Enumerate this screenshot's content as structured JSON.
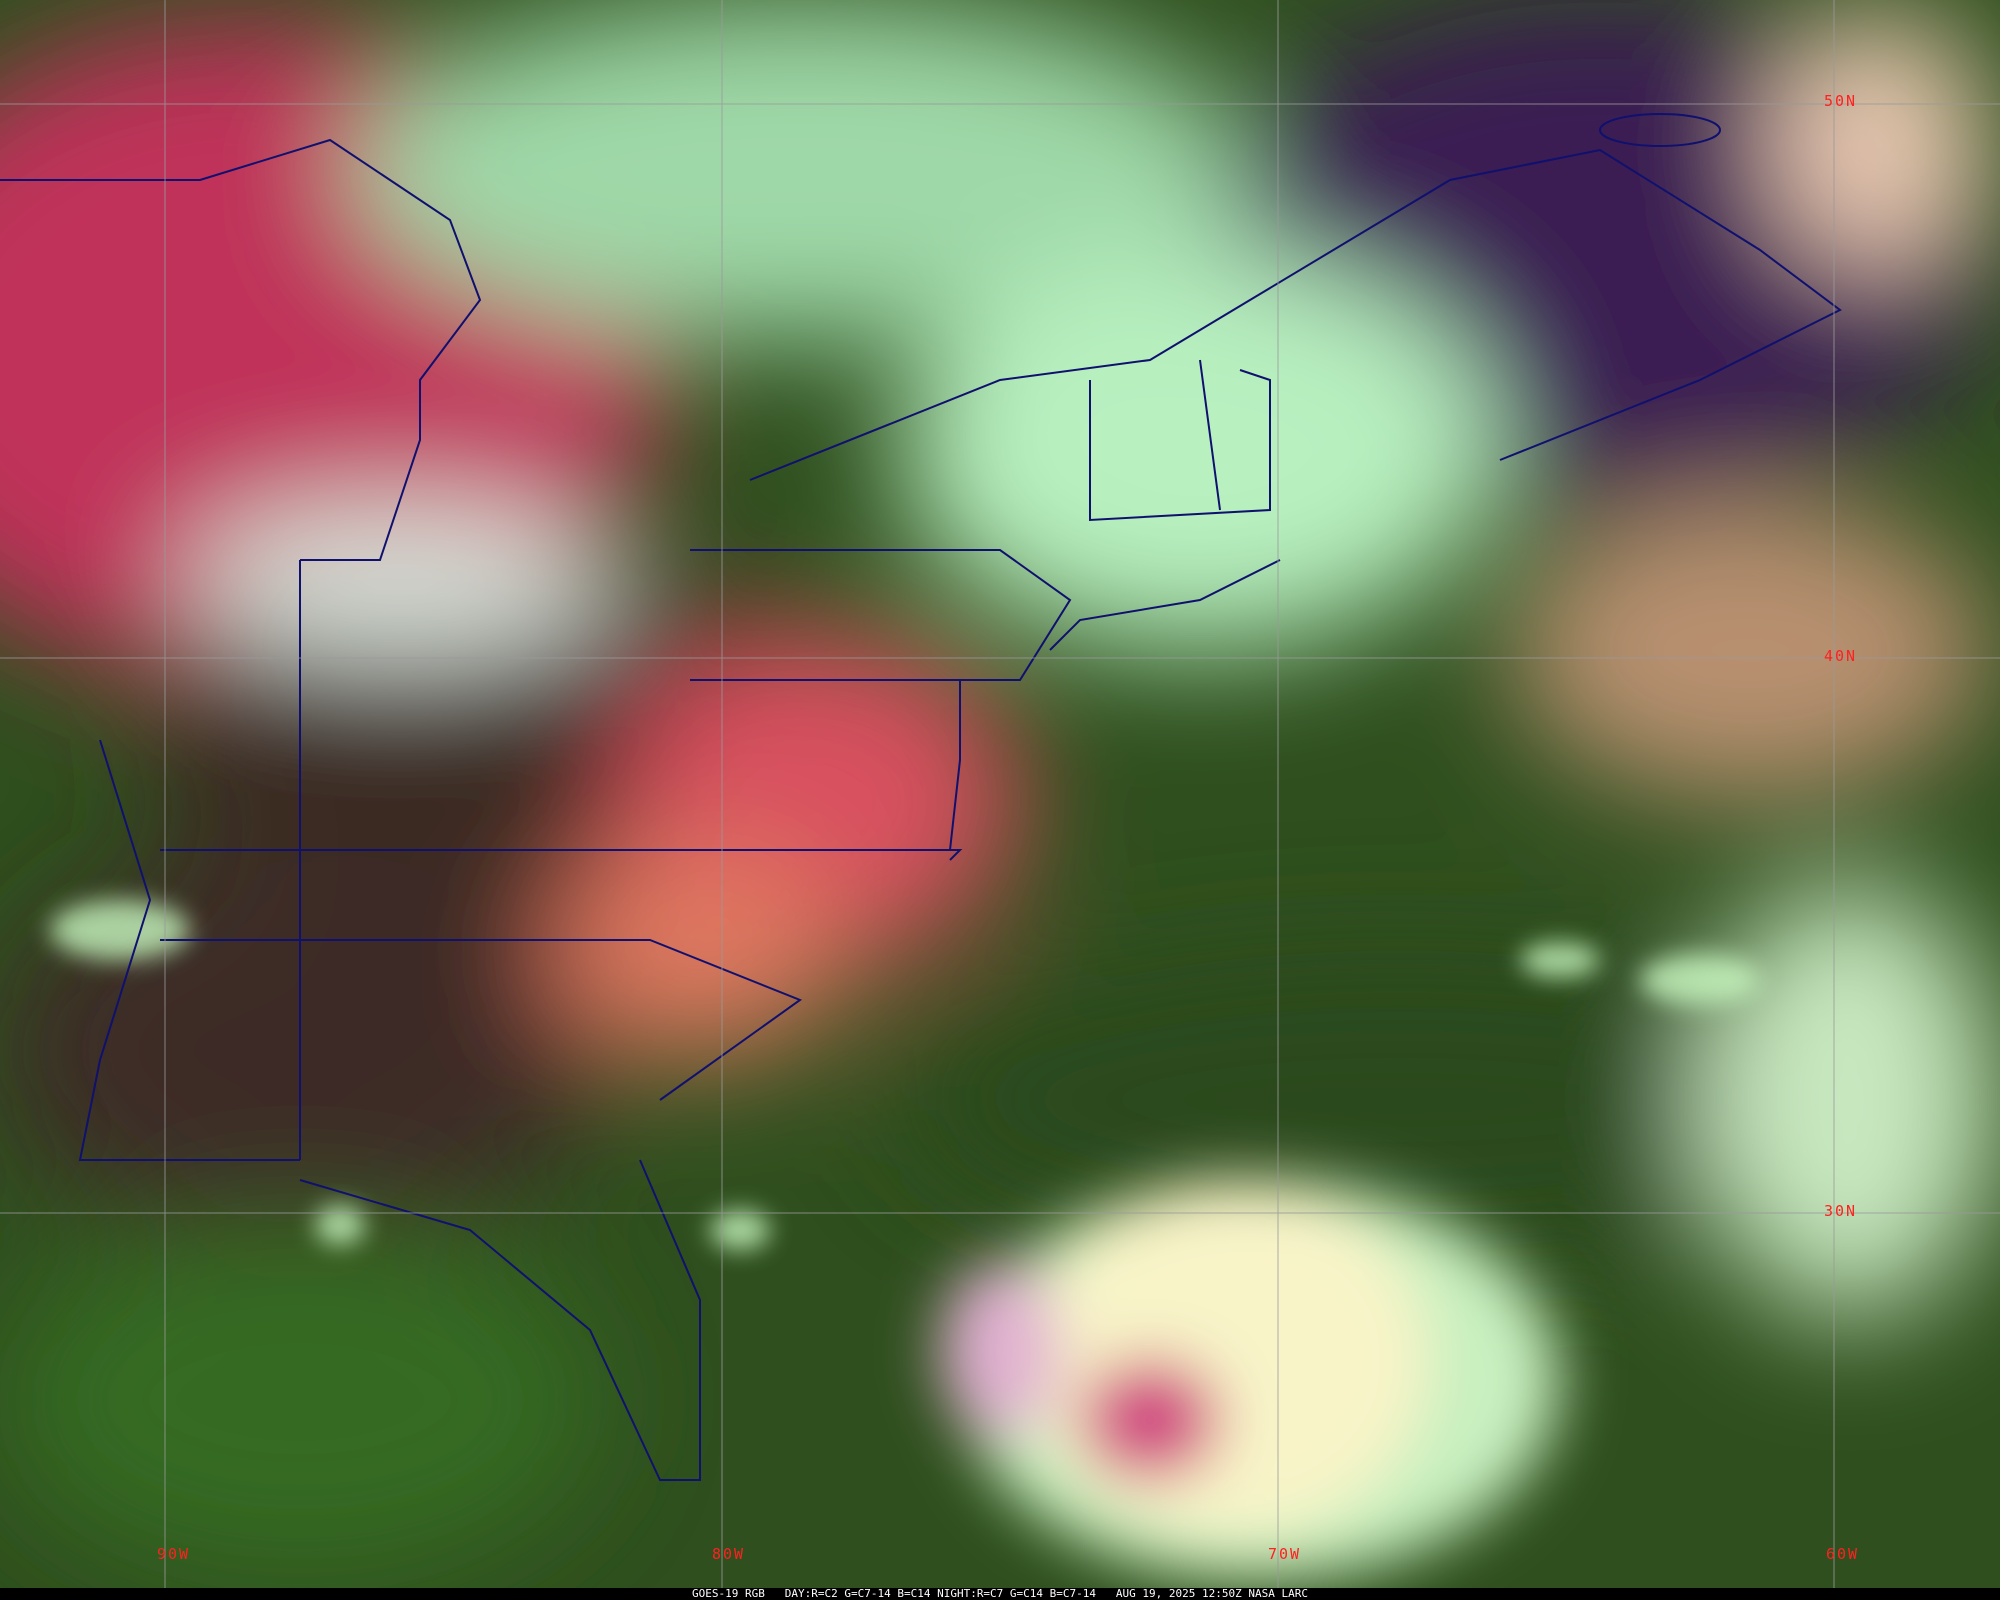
{
  "caption": {
    "satellite": "GOES-19 RGB",
    "day_recipe": "DAY:R=C2 G=C7-14 B=C14",
    "night_recipe": "NIGHT:R=C7 G=C14 B=C7-14",
    "datetime": "AUG 19, 2025 12:50Z",
    "source": "NASA LARC"
  },
  "grid": {
    "longitudes": [
      "90W",
      "80W",
      "70W",
      "60W"
    ],
    "latitudes": [
      "50N",
      "40N",
      "30N"
    ]
  },
  "colors": {
    "grid": "#9a9a9a",
    "labels": "#ff2020",
    "borders": "#10106e",
    "clear_land": "#c0305a",
    "low_cloud": "#b8f0b0",
    "ocean": "#2f5a1e",
    "hurricane_core": "#f8f4c8"
  }
}
